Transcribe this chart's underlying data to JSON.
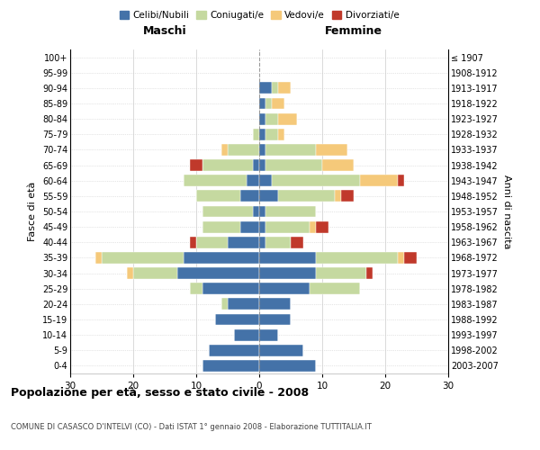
{
  "age_groups": [
    "0-4",
    "5-9",
    "10-14",
    "15-19",
    "20-24",
    "25-29",
    "30-34",
    "35-39",
    "40-44",
    "45-49",
    "50-54",
    "55-59",
    "60-64",
    "65-69",
    "70-74",
    "75-79",
    "80-84",
    "85-89",
    "90-94",
    "95-99",
    "100+"
  ],
  "birth_years": [
    "2003-2007",
    "1998-2002",
    "1993-1997",
    "1988-1992",
    "1983-1987",
    "1978-1982",
    "1973-1977",
    "1968-1972",
    "1963-1967",
    "1958-1962",
    "1953-1957",
    "1948-1952",
    "1943-1947",
    "1938-1942",
    "1933-1937",
    "1928-1932",
    "1923-1927",
    "1918-1922",
    "1913-1917",
    "1908-1912",
    "≤ 1907"
  ],
  "maschi": {
    "celibi": [
      9,
      8,
      4,
      7,
      5,
      9,
      13,
      12,
      5,
      3,
      1,
      3,
      2,
      1,
      0,
      0,
      0,
      0,
      0,
      0,
      0
    ],
    "coniugati": [
      0,
      0,
      0,
      0,
      1,
      2,
      7,
      13,
      5,
      6,
      8,
      7,
      10,
      8,
      5,
      1,
      0,
      0,
      0,
      0,
      0
    ],
    "vedovi": [
      0,
      0,
      0,
      0,
      0,
      0,
      1,
      1,
      0,
      0,
      0,
      0,
      0,
      0,
      1,
      0,
      0,
      0,
      0,
      0,
      0
    ],
    "divorziati": [
      0,
      0,
      0,
      0,
      0,
      0,
      0,
      0,
      1,
      0,
      0,
      0,
      0,
      2,
      0,
      0,
      0,
      0,
      0,
      0,
      0
    ]
  },
  "femmine": {
    "nubili": [
      9,
      7,
      3,
      5,
      5,
      8,
      9,
      9,
      1,
      1,
      1,
      3,
      2,
      1,
      1,
      1,
      1,
      1,
      2,
      0,
      0
    ],
    "coniugate": [
      0,
      0,
      0,
      0,
      0,
      8,
      8,
      13,
      4,
      7,
      8,
      9,
      14,
      9,
      8,
      2,
      2,
      1,
      1,
      0,
      0
    ],
    "vedove": [
      0,
      0,
      0,
      0,
      0,
      0,
      0,
      1,
      0,
      1,
      0,
      1,
      6,
      5,
      5,
      1,
      3,
      2,
      2,
      0,
      0
    ],
    "divorziate": [
      0,
      0,
      0,
      0,
      0,
      0,
      1,
      2,
      2,
      2,
      0,
      2,
      1,
      0,
      0,
      0,
      0,
      0,
      0,
      0,
      0
    ]
  },
  "colors": {
    "celibi": "#4472a8",
    "coniugati": "#c5d9a0",
    "vedovi": "#f5c97a",
    "divorziati": "#c0392b"
  },
  "title": "Popolazione per età, sesso e stato civile - 2008",
  "subtitle": "COMUNE DI CASASCO D'INTELVI (CO) - Dati ISTAT 1° gennaio 2008 - Elaborazione TUTTITALIA.IT",
  "xlabel_left": "Maschi",
  "xlabel_right": "Femmine",
  "ylabel_left": "Fasce di età",
  "ylabel_right": "Anni di nascita",
  "xlim": 30,
  "bg_color": "#ffffff",
  "grid_color": "#cccccc"
}
